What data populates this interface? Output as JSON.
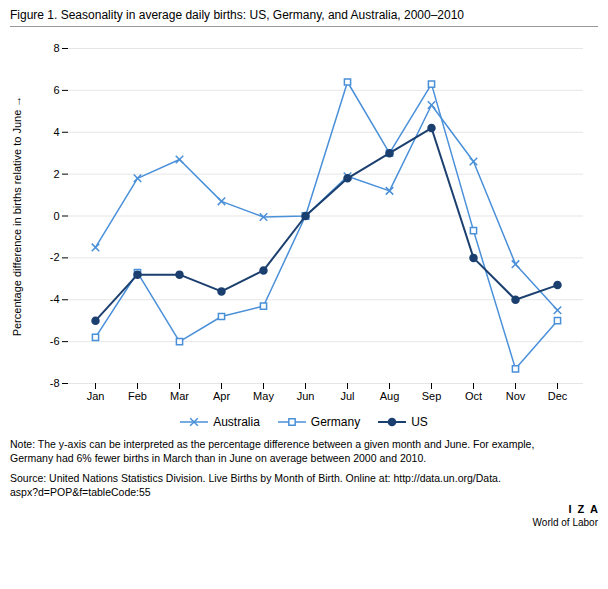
{
  "chart_data": {
    "type": "line",
    "title": "Figure 1. Seasonality in average daily births: US, Germany, and Australia, 2000–2010",
    "categories": [
      "Jan",
      "Feb",
      "Mar",
      "Apr",
      "May",
      "Jun",
      "Jul",
      "Aug",
      "Sep",
      "Oct",
      "Nov",
      "Dec"
    ],
    "series": [
      {
        "name": "Australia",
        "color": "#4a90d9",
        "marker": "x",
        "values": [
          -1.5,
          1.8,
          2.7,
          0.7,
          -0.05,
          0.0,
          1.9,
          1.2,
          5.3,
          2.6,
          -2.3,
          -4.5
        ]
      },
      {
        "name": "Germany",
        "color": "#4a90d9",
        "marker": "square",
        "values": [
          -5.8,
          -2.7,
          -6.0,
          -4.8,
          -4.3,
          0.0,
          6.4,
          3.0,
          6.3,
          -0.7,
          -7.3,
          -5.0
        ]
      },
      {
        "name": "US",
        "color": "#1b3f6f",
        "marker": "circle",
        "values": [
          -5.0,
          -2.8,
          -2.8,
          -3.6,
          -2.6,
          0.0,
          1.8,
          3.0,
          4.2,
          -2.0,
          -4.0,
          -3.3
        ]
      }
    ],
    "ylabel": "Percentage difference in births relative to June",
    "ylim": [
      -8,
      8
    ],
    "yticks": [
      -8,
      -6,
      -4,
      -2,
      0,
      2,
      4,
      6,
      8
    ],
    "grid": true,
    "legend": "bottom",
    "note": [
      "Note: The y-axis can be interpreted as the percentage difference between a given month and June. For example,",
      "Germany had 6% fewer births in March than in June on average between 2000 and 2010."
    ],
    "source": [
      "Source: United Nations Statistics Division. Live Births by Month of Birth. Online at: http://data.un.org/Data.",
      "aspx?d=POP&f=tableCode:55"
    ],
    "logo": [
      "I  Z  A",
      "World of Labor"
    ]
  }
}
